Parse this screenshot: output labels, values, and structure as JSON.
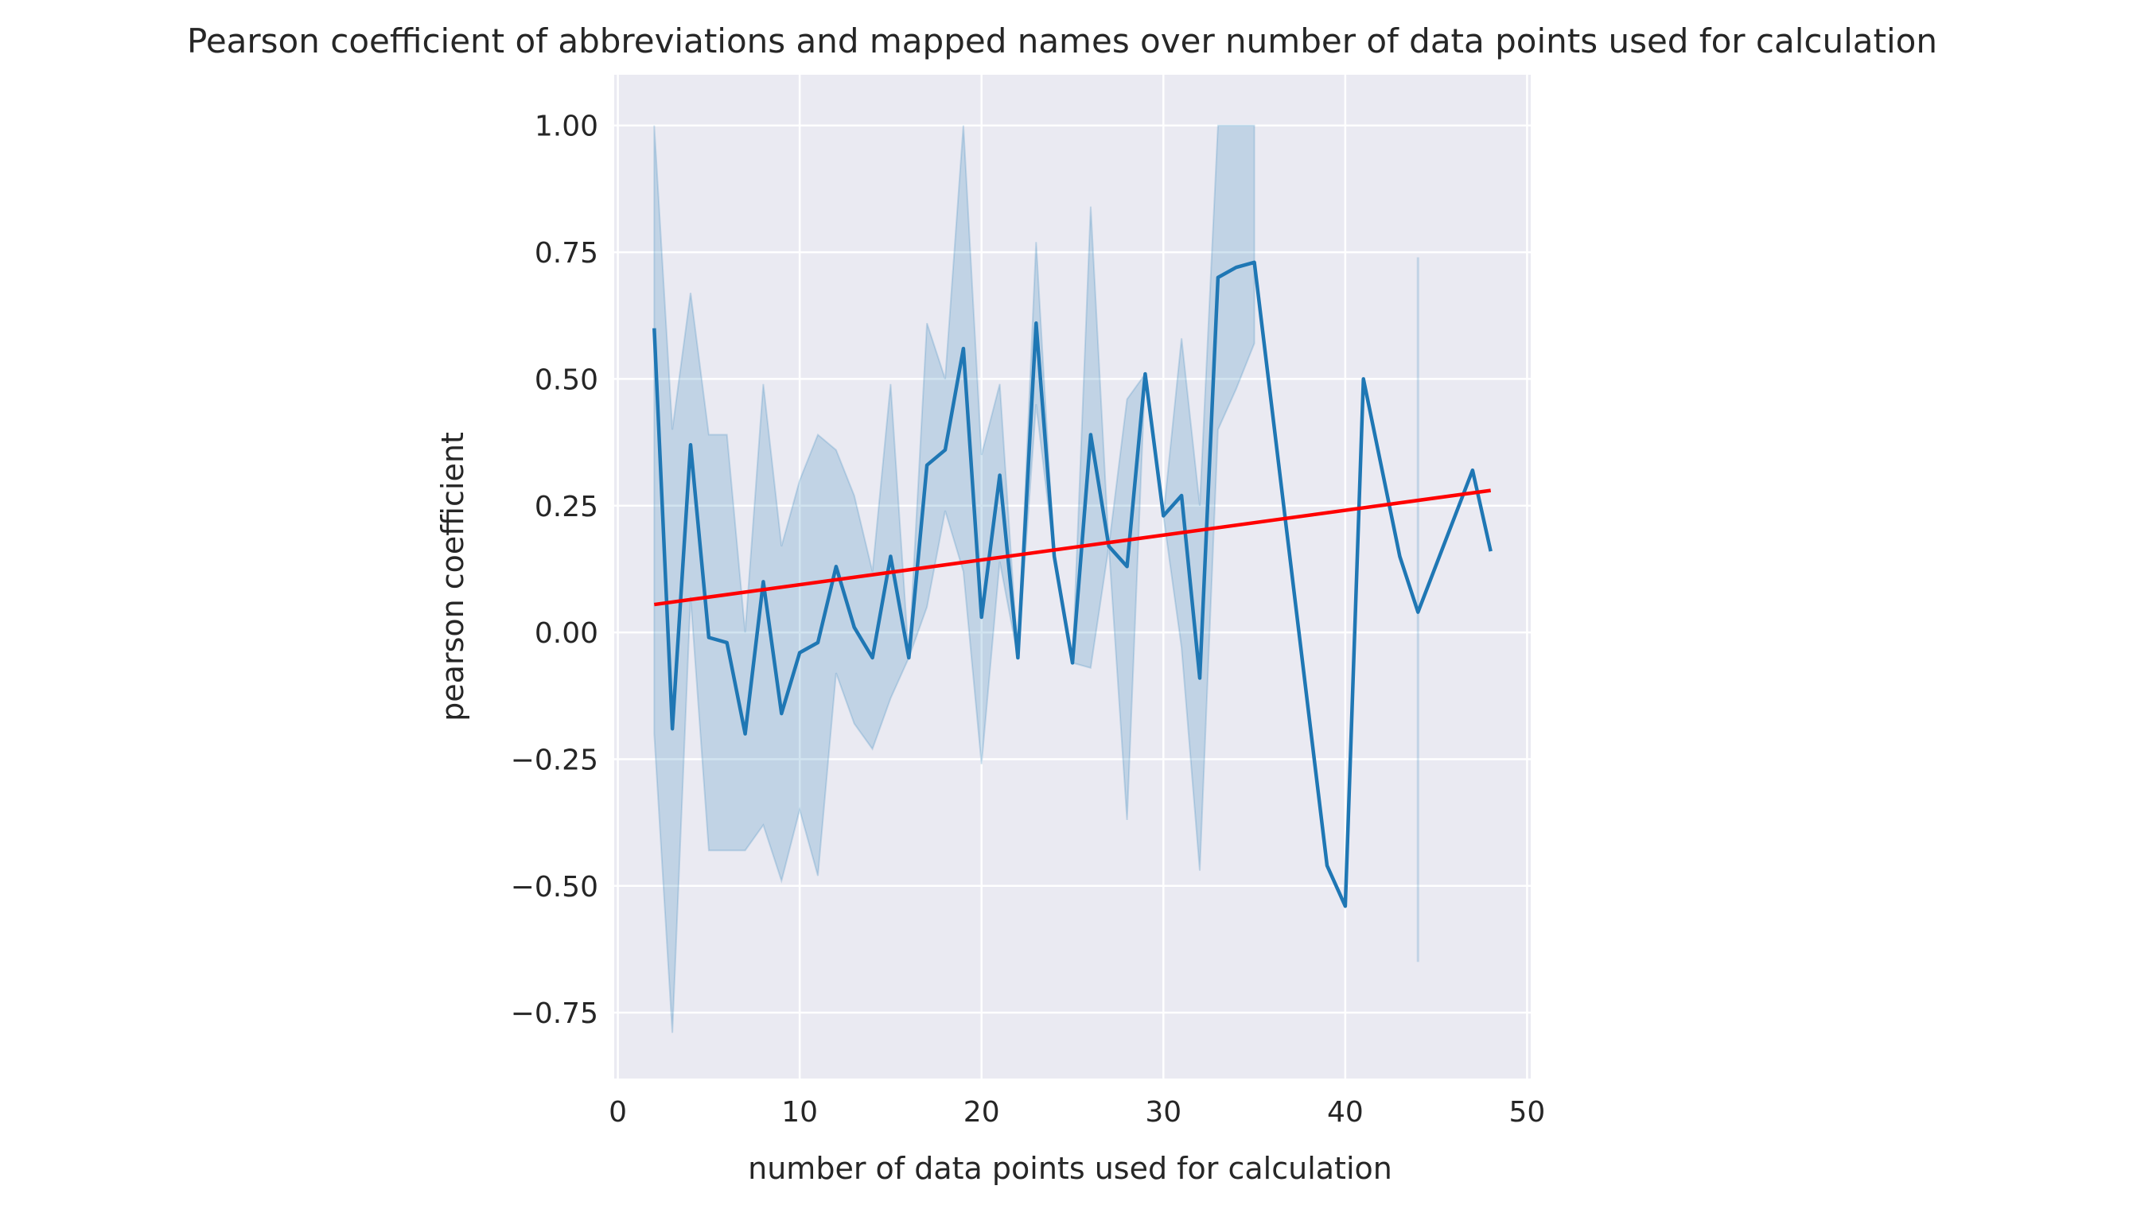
{
  "chart_data": {
    "type": "line",
    "title": "Pearson coefficient of abbreviations and mapped names over number of data points used for calculation",
    "xlabel": "number of data points used for calculation",
    "ylabel": "pearson coefficient",
    "xlim": [
      -0.2,
      50.2
    ],
    "ylim": [
      -0.88,
      1.1
    ],
    "x_ticks": [
      0,
      10,
      20,
      30,
      40,
      50
    ],
    "x_tick_labels": [
      "0",
      "10",
      "20",
      "30",
      "40",
      "50"
    ],
    "y_ticks": [
      -0.75,
      -0.5,
      -0.25,
      0.0,
      0.25,
      0.5,
      0.75,
      1.0
    ],
    "y_tick_labels": [
      "−0.75",
      "−0.50",
      "−0.25",
      "0.00",
      "0.25",
      "0.50",
      "0.75",
      "1.00"
    ],
    "grid": true,
    "background_color": "#eaeaf2",
    "series": [
      {
        "type": "line",
        "color": "#1f77b4",
        "x": [
          2,
          3,
          4,
          5,
          6,
          7,
          8,
          9,
          10,
          11,
          12,
          13,
          14,
          15,
          16,
          17,
          18,
          19,
          20,
          21,
          22,
          23,
          24,
          25,
          26,
          27,
          28,
          29,
          30,
          31,
          32,
          33,
          34,
          35,
          39,
          40,
          41,
          43,
          44,
          47,
          48
        ],
        "y": [
          0.6,
          -0.19,
          0.37,
          -0.01,
          -0.02,
          -0.2,
          0.1,
          -0.16,
          -0.04,
          -0.02,
          0.13,
          0.01,
          -0.05,
          0.15,
          -0.05,
          0.33,
          0.36,
          0.56,
          0.03,
          0.31,
          -0.05,
          0.61,
          0.15,
          -0.06,
          0.39,
          0.17,
          0.13,
          0.51,
          0.23,
          0.27,
          -0.09,
          0.7,
          0.72,
          0.73,
          -0.46,
          -0.54,
          0.5,
          0.15,
          0.04,
          0.32,
          0.16
        ]
      },
      {
        "type": "band",
        "color": "#1f77b4",
        "opacity": 0.2,
        "x": [
          2,
          3,
          4,
          5,
          6,
          7,
          8,
          9,
          10,
          11,
          12,
          13,
          14,
          15,
          16,
          17,
          18,
          19,
          20,
          21,
          22,
          23,
          24,
          25,
          26,
          27,
          28,
          29,
          30,
          31,
          32,
          33,
          34,
          35
        ],
        "upper": [
          1.0,
          0.4,
          0.67,
          0.39,
          0.39,
          0.0,
          0.49,
          0.17,
          0.3,
          0.39,
          0.36,
          0.27,
          0.12,
          0.49,
          -0.05,
          0.61,
          0.5,
          1.0,
          0.35,
          0.49,
          -0.05,
          0.77,
          0.15,
          -0.06,
          0.84,
          0.17,
          0.46,
          0.51,
          0.23,
          0.58,
          0.25,
          1.0,
          1.0,
          1.0
        ],
        "lower": [
          -0.2,
          -0.79,
          0.07,
          -0.43,
          -0.43,
          -0.43,
          -0.38,
          -0.49,
          -0.35,
          -0.48,
          -0.08,
          -0.18,
          -0.23,
          -0.13,
          -0.05,
          0.05,
          0.24,
          0.12,
          -0.26,
          0.14,
          -0.05,
          0.45,
          0.15,
          -0.06,
          -0.07,
          0.17,
          -0.37,
          0.51,
          0.23,
          -0.03,
          -0.47,
          0.4,
          0.48,
          0.57
        ]
      },
      {
        "type": "band_segment",
        "color": "#1f77b4",
        "opacity": 0.2,
        "x": 44,
        "upper": 0.74,
        "lower": -0.65
      },
      {
        "type": "trend",
        "color": "#ff0000",
        "x": [
          2,
          48
        ],
        "y": [
          0.055,
          0.28
        ]
      }
    ]
  }
}
